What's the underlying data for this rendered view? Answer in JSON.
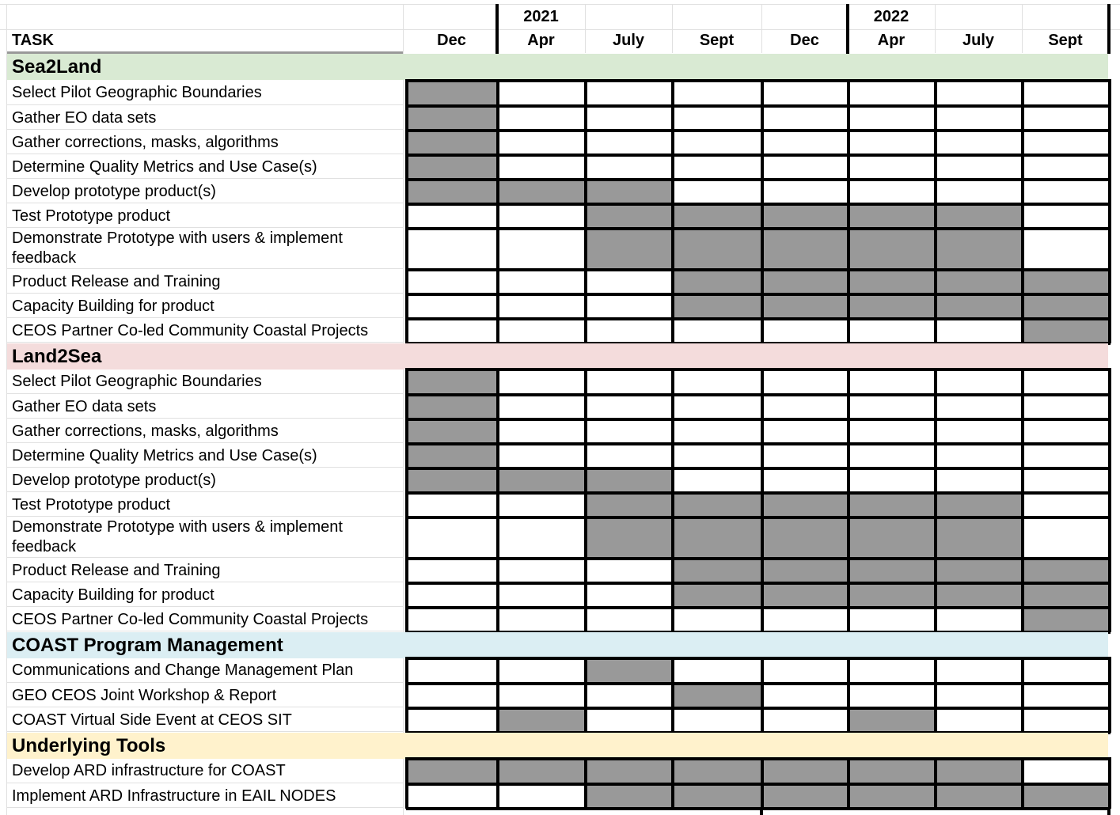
{
  "header": {
    "task_label": "TASK",
    "years": [
      {
        "label": "2021",
        "col": 1
      },
      {
        "label": "2022",
        "col": 5
      }
    ],
    "months": [
      "Dec",
      "Apr",
      "July",
      "Sept",
      "Dec",
      "Apr",
      "July",
      "Sept"
    ]
  },
  "colors": {
    "filled": "#999999",
    "empty": "#ffffff",
    "sea2land_band": "#d9ead3",
    "land2sea_band": "#f4dcdc",
    "coast_band": "#dbeef3",
    "tools_band": "#fff2cc"
  },
  "sections": [
    {
      "title": "Sea2Land",
      "color_key": "sea2land_band",
      "tasks": [
        {
          "name": "Select Pilot Geographic Boundaries",
          "active": [
            1,
            0,
            0,
            0,
            0,
            0,
            0,
            0
          ]
        },
        {
          "name": "Gather EO data sets",
          "active": [
            1,
            0,
            0,
            0,
            0,
            0,
            0,
            0
          ]
        },
        {
          "name": "Gather corrections, masks, algorithms",
          "active": [
            1,
            0,
            0,
            0,
            0,
            0,
            0,
            0
          ]
        },
        {
          "name": "Determine Quality Metrics and Use Case(s)",
          "active": [
            1,
            0,
            0,
            0,
            0,
            0,
            0,
            0
          ]
        },
        {
          "name": "Develop prototype product(s)",
          "active": [
            1,
            1,
            1,
            0,
            0,
            0,
            0,
            0
          ]
        },
        {
          "name": "Test Prototype product",
          "active": [
            0,
            0,
            1,
            1,
            1,
            1,
            1,
            0
          ]
        },
        {
          "name": "Demonstrate Prototype with users & implement feedback",
          "active": [
            0,
            0,
            1,
            1,
            1,
            1,
            1,
            0
          ]
        },
        {
          "name": "Product Release and Training",
          "active": [
            0,
            0,
            0,
            1,
            1,
            1,
            1,
            1
          ]
        },
        {
          "name": "Capacity Building for product",
          "active": [
            0,
            0,
            0,
            1,
            1,
            1,
            1,
            1
          ]
        },
        {
          "name": "CEOS Partner Co-led Community Coastal Projects",
          "active": [
            0,
            0,
            0,
            0,
            0,
            0,
            0,
            1
          ]
        }
      ]
    },
    {
      "title": "Land2Sea",
      "color_key": "land2sea_band",
      "tasks": [
        {
          "name": "Select Pilot Geographic Boundaries",
          "active": [
            1,
            0,
            0,
            0,
            0,
            0,
            0,
            0
          ]
        },
        {
          "name": "Gather EO data sets",
          "active": [
            1,
            0,
            0,
            0,
            0,
            0,
            0,
            0
          ]
        },
        {
          "name": "Gather corrections, masks, algorithms",
          "active": [
            1,
            0,
            0,
            0,
            0,
            0,
            0,
            0
          ]
        },
        {
          "name": "Determine Quality Metrics and Use Case(s)",
          "active": [
            1,
            0,
            0,
            0,
            0,
            0,
            0,
            0
          ]
        },
        {
          "name": "Develop prototype product(s)",
          "active": [
            1,
            1,
            1,
            0,
            0,
            0,
            0,
            0
          ]
        },
        {
          "name": "Test Prototype product",
          "active": [
            0,
            0,
            1,
            1,
            1,
            1,
            1,
            0
          ]
        },
        {
          "name": "Demonstrate Prototype with users & implement feedback",
          "active": [
            0,
            0,
            1,
            1,
            1,
            1,
            1,
            0
          ]
        },
        {
          "name": "Product Release and Training",
          "active": [
            0,
            0,
            0,
            1,
            1,
            1,
            1,
            1
          ]
        },
        {
          "name": "Capacity Building for product",
          "active": [
            0,
            0,
            0,
            1,
            1,
            1,
            1,
            1
          ]
        },
        {
          "name": "CEOS Partner Co-led Community Coastal Projects",
          "active": [
            0,
            0,
            0,
            0,
            0,
            0,
            0,
            1
          ]
        }
      ]
    },
    {
      "title": "COAST Program Management",
      "color_key": "coast_band",
      "tasks": [
        {
          "name": "Communications and Change Management Plan",
          "active": [
            0,
            0,
            1,
            0,
            0,
            0,
            0,
            0
          ]
        },
        {
          "name": "GEO CEOS Joint Workshop & Report",
          "active": [
            0,
            0,
            0,
            1,
            0,
            0,
            0,
            0
          ]
        },
        {
          "name": "COAST Virtual Side Event at CEOS SIT",
          "active": [
            0,
            1,
            0,
            0,
            0,
            1,
            0,
            0
          ]
        }
      ]
    },
    {
      "title": "Underlying Tools",
      "color_key": "tools_band",
      "tasks": [
        {
          "name": "Develop ARD infrastructure for COAST",
          "active": [
            1,
            1,
            1,
            1,
            1,
            1,
            1,
            0
          ]
        },
        {
          "name": "Implement ARD Infrastructure in EAIL NODES",
          "active": [
            0,
            0,
            1,
            1,
            1,
            1,
            1,
            1
          ]
        }
      ]
    }
  ]
}
